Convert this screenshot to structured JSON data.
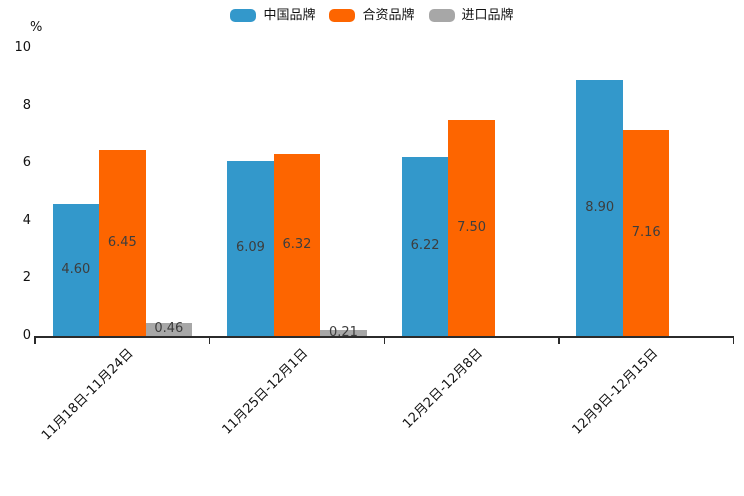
{
  "chart_data": {
    "type": "bar",
    "title": "",
    "ylabel": "%",
    "xlabel": "",
    "ylim": [
      0,
      10
    ],
    "yticks": [
      "0",
      "2",
      "4",
      "6",
      "8",
      "10"
    ],
    "grid": false,
    "legend_position": "top-center",
    "categories": [
      "11月18日-11月24日",
      "11月25日-12月1日",
      "12月2日-12月8日",
      "12月9日-12月15日"
    ],
    "series": [
      {
        "name": "中国品牌",
        "color": "#3398cb",
        "values": [
          4.6,
          6.09,
          6.22,
          8.9
        ],
        "labels": [
          "4.60",
          "6.09",
          "6.22",
          "8.90"
        ]
      },
      {
        "name": "合资品牌",
        "color": "#fd6500",
        "values": [
          6.45,
          6.32,
          7.5,
          7.16
        ],
        "labels": [
          "6.45",
          "6.32",
          "7.50",
          "7.16"
        ]
      },
      {
        "name": "进口品牌",
        "color": "#a7a7a7",
        "values": [
          0.46,
          0.21,
          null,
          null
        ],
        "labels": [
          "0.46",
          "0.21",
          "",
          ""
        ]
      }
    ]
  }
}
